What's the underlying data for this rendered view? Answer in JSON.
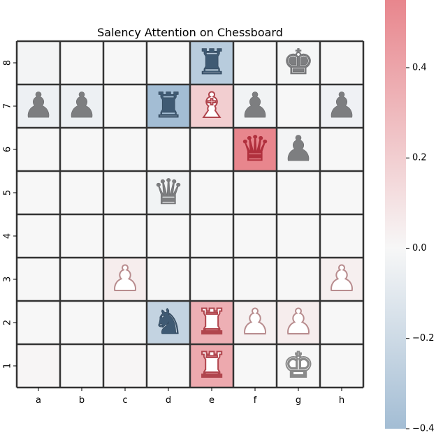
{
  "chart_data": {
    "type": "heatmap",
    "title": "Salency Attention on Chessboard",
    "files": [
      "a",
      "b",
      "c",
      "d",
      "e",
      "f",
      "g",
      "h"
    ],
    "ranks": [
      "8",
      "7",
      "6",
      "5",
      "4",
      "3",
      "2",
      "1"
    ],
    "values": [
      [
        -0.02,
        0.0,
        0.0,
        0.0,
        -0.3,
        0.0,
        -0.01,
        0.0
      ],
      [
        -0.05,
        -0.05,
        0.0,
        -0.4,
        0.2,
        -0.03,
        0.0,
        -0.04
      ],
      [
        0.0,
        0.0,
        0.0,
        0.0,
        0.0,
        0.55,
        -0.02,
        0.0
      ],
      [
        0.0,
        0.0,
        0.0,
        -0.03,
        0.0,
        0.0,
        0.0,
        0.0
      ],
      [
        0.0,
        0.0,
        0.0,
        0.0,
        0.0,
        0.0,
        0.0,
        0.0
      ],
      [
        0.0,
        0.0,
        0.05,
        0.0,
        0.0,
        0.0,
        0.0,
        0.04
      ],
      [
        0.0,
        0.0,
        0.0,
        -0.25,
        0.35,
        0.03,
        0.05,
        0.0
      ],
      [
        0.01,
        0.0,
        0.01,
        0.0,
        0.38,
        0.0,
        0.0,
        0.0
      ]
    ],
    "pieces": [
      [
        "",
        "",
        "",
        "",
        "r",
        "",
        "k",
        ""
      ],
      [
        "p",
        "p",
        "",
        "r",
        "b",
        "p",
        "",
        "p"
      ],
      [
        "",
        "",
        "",
        "",
        "",
        "q",
        "p",
        ""
      ],
      [
        "",
        "",
        "",
        "q",
        "",
        "",
        "",
        ""
      ],
      [
        "",
        "",
        "",
        "",
        "",
        "",
        "",
        ""
      ],
      [
        "",
        "",
        "P",
        "",
        "",
        "",
        "",
        "P"
      ],
      [
        "",
        "",
        "",
        "n",
        "R",
        "P",
        "P",
        ""
      ],
      [
        "",
        "",
        "",
        "",
        "R",
        "",
        "K",
        ""
      ]
    ],
    "colorbar": {
      "range": [
        -0.4,
        0.55
      ],
      "ticks": [
        0.4,
        0.2,
        0.0,
        -0.2,
        -0.4
      ],
      "tick_labels": [
        "0.4",
        "0.2",
        "0.0",
        "−0.2",
        "−0.4"
      ],
      "negative_color": "#a3bdd4",
      "center_color": "#f7f7f7",
      "positive_color": "#e8868d"
    },
    "grid": true,
    "grid_color": "#333333"
  }
}
